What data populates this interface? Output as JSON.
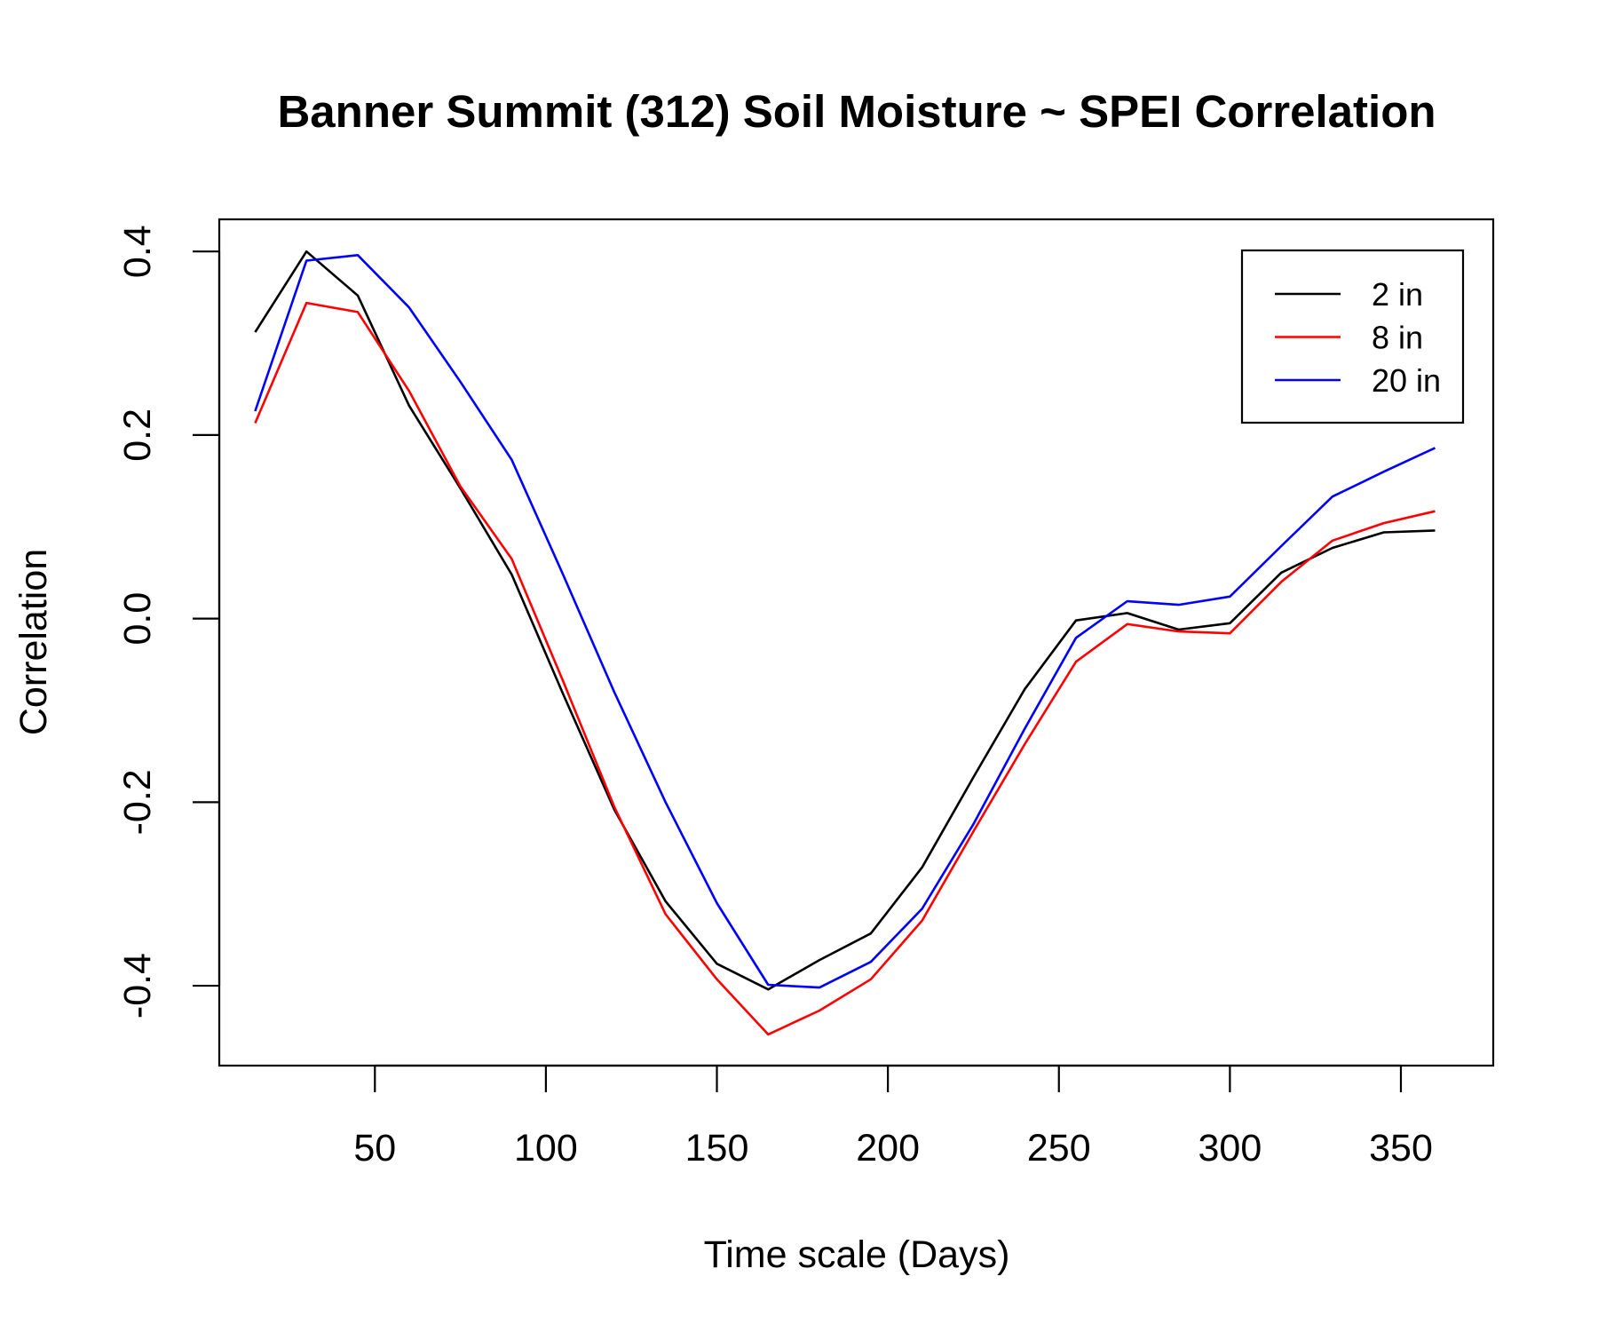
{
  "chart_data": {
    "type": "line",
    "title": "Banner Summit (312) Soil Moisture ~ SPEI Correlation",
    "xlabel": "Time scale (Days)",
    "ylabel": "Correlation",
    "xlim": [
      4.5,
      377
    ],
    "ylim": [
      -0.487,
      0.435
    ],
    "xticks": [
      50,
      100,
      150,
      200,
      250,
      300,
      350
    ],
    "xtick_labels": [
      "50",
      "100",
      "150",
      "200",
      "250",
      "300",
      "350"
    ],
    "yticks": [
      -0.4,
      -0.2,
      0.0,
      0.2,
      0.4
    ],
    "ytick_labels": [
      "-0.4",
      "-0.2",
      "0.0",
      "0.2",
      "0.4"
    ],
    "grid": false,
    "legend_position": "top-right",
    "x": [
      15,
      30,
      45,
      60,
      75,
      90,
      105,
      120,
      135,
      150,
      165,
      180,
      195,
      210,
      225,
      240,
      255,
      270,
      285,
      300,
      315,
      330,
      345,
      360
    ],
    "series": [
      {
        "name": "2 in",
        "color": "#000000",
        "values": [
          0.312,
          0.4,
          0.352,
          0.232,
          0.142,
          0.048,
          -0.082,
          -0.208,
          -0.308,
          -0.376,
          -0.404,
          -0.372,
          -0.343,
          -0.271,
          -0.173,
          -0.077,
          -0.002,
          0.006,
          -0.012,
          -0.005,
          0.05,
          0.077,
          0.094,
          0.096
        ]
      },
      {
        "name": "8 in",
        "color": "#ff0000",
        "values": [
          0.213,
          0.344,
          0.334,
          0.248,
          0.144,
          0.065,
          -0.068,
          -0.205,
          -0.322,
          -0.393,
          -0.453,
          -0.427,
          -0.393,
          -0.329,
          -0.232,
          -0.137,
          -0.047,
          -0.006,
          -0.014,
          -0.016,
          0.04,
          0.085,
          0.104,
          0.117
        ]
      },
      {
        "name": "20 in",
        "color": "#0000ff",
        "values": [
          0.226,
          0.39,
          0.396,
          0.339,
          0.258,
          0.173,
          0.048,
          -0.08,
          -0.2,
          -0.31,
          -0.399,
          -0.402,
          -0.374,
          -0.316,
          -0.224,
          -0.12,
          -0.021,
          0.019,
          0.015,
          0.024,
          0.079,
          0.133,
          0.16,
          0.186
        ]
      }
    ]
  }
}
